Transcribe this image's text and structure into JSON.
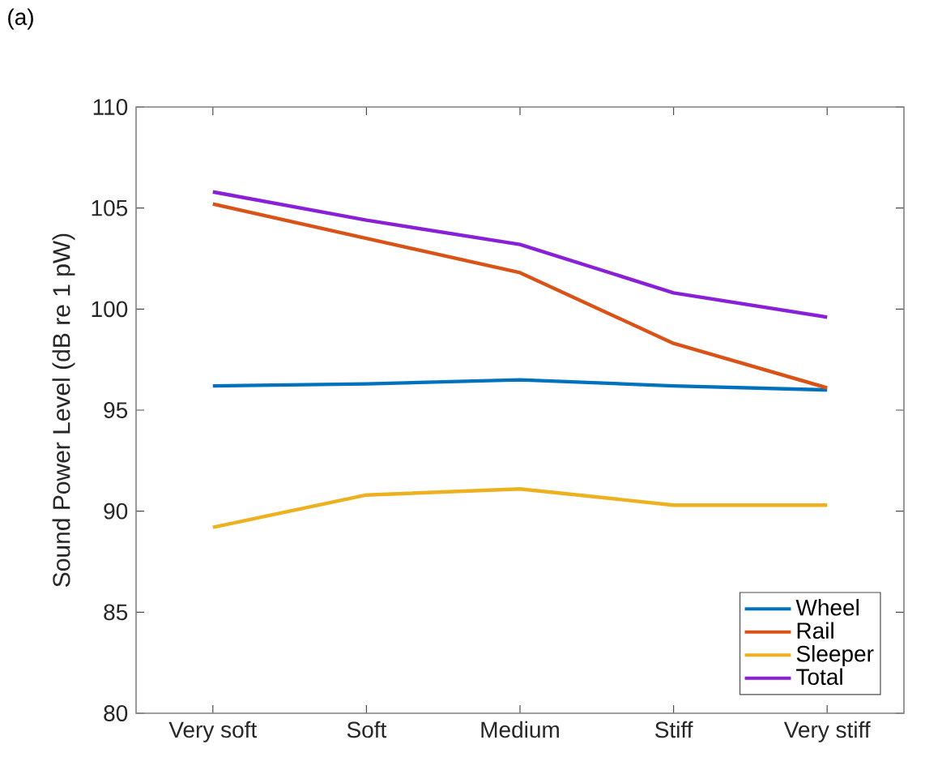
{
  "chart_data": {
    "type": "line",
    "categories": [
      "Very soft",
      "Soft",
      "Medium",
      "Stiff",
      "Very stiff"
    ],
    "ylabel": "Sound Power Level (dB re 1 pW)",
    "ylim": [
      80,
      110
    ],
    "yticks": [
      80,
      85,
      90,
      95,
      100,
      105,
      110
    ],
    "annotations": [
      "(a)"
    ],
    "legend": "bottom right",
    "grid": false,
    "series": [
      {
        "name": "Wheel",
        "color": "#0072bd",
        "values": [
          96.2,
          96.3,
          96.5,
          96.2,
          96.0
        ]
      },
      {
        "name": "Rail",
        "color": "#d95319",
        "values": [
          105.2,
          103.5,
          101.8,
          98.3,
          96.1
        ]
      },
      {
        "name": "Sleeper",
        "color": "#edb120",
        "values": [
          89.2,
          90.8,
          91.1,
          90.3,
          90.3
        ]
      },
      {
        "name": "Total",
        "color": "#8a1fd8",
        "values": [
          105.8,
          104.4,
          103.2,
          100.8,
          99.6
        ]
      }
    ]
  }
}
